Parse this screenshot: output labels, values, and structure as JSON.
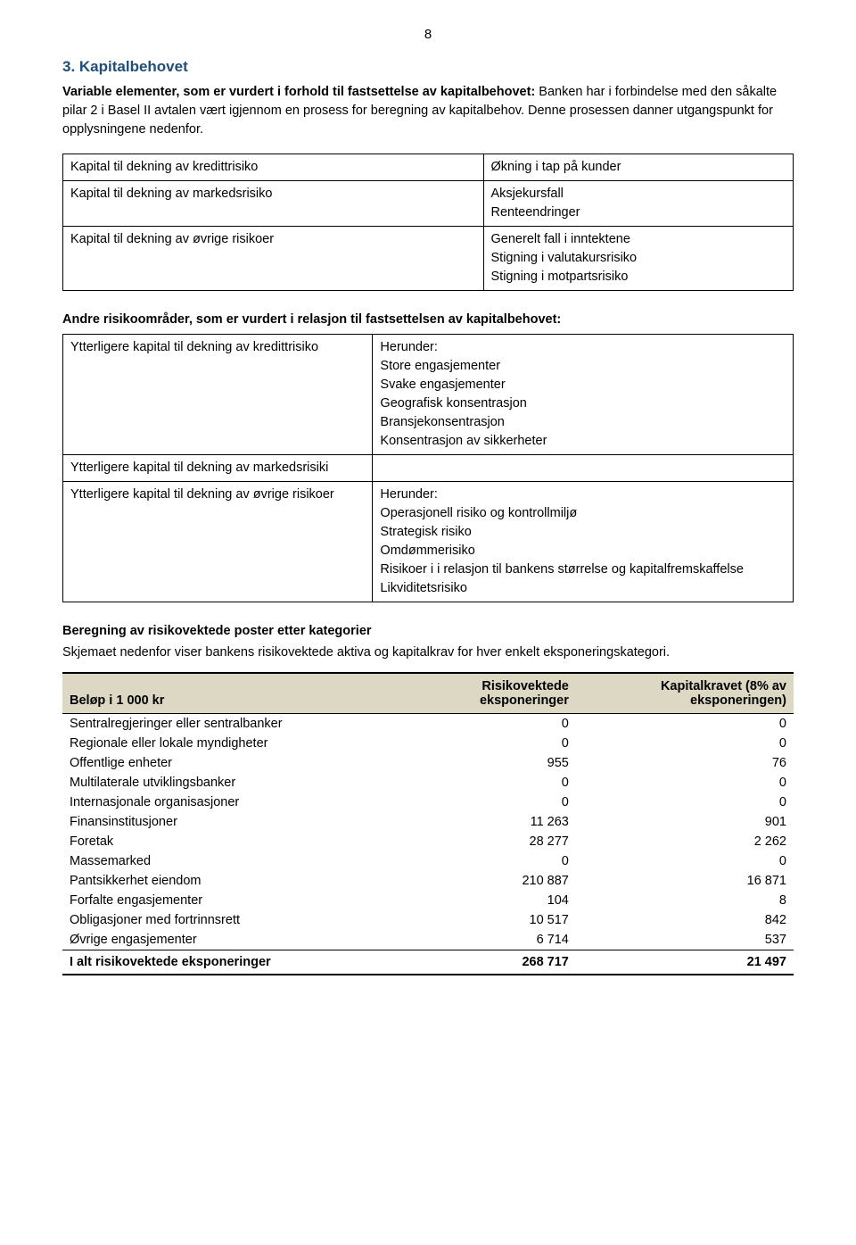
{
  "page_number": "8",
  "section": {
    "title": "3. Kapitalbehovet",
    "intro_lead": "Variable elementer, som er vurdert i forhold til fastsettelse av kapitalbehovet:",
    "intro_rest": " Banken har i forbindelse med den såkalte pilar 2 i Basel II avtalen vært igjennom en prosess for beregning av kapitalbehov. Denne prosessen danner utgangspunkt for opplysningene nedenfor."
  },
  "table1": {
    "rows": [
      {
        "left": "Kapital til dekning av kredittrisiko",
        "right": "Økning i tap på kunder"
      },
      {
        "left": "Kapital til dekning av markedsrisiko",
        "right": "Aksjekursfall\nRenteendringer"
      },
      {
        "left": "Kapital til dekning av øvrige risikoer",
        "right": "Generelt fall i inntektene\nStigning i valutakursrisiko\nStigning i motpartsrisiko"
      }
    ]
  },
  "mid_heading": "Andre risikoområder, som er vurdert i relasjon til fastsettelsen av kapitalbehovet:",
  "table2": {
    "rows": [
      {
        "left": "Ytterligere kapital til dekning av kredittrisiko",
        "right": "Herunder:\nStore engasjementer\nSvake engasjementer\nGeografisk konsentrasjon\nBransjekonsentrasjon\nKonsentrasjon av sikkerheter"
      },
      {
        "left": "Ytterligere kapital til dekning av markedsrisiki",
        "right": ""
      },
      {
        "left": "Ytterligere kapital til dekning av øvrige risikoer",
        "right": "Herunder:\nOperasjonell risiko og kontrollmiljø\nStrategisk risiko\nOmdømmerisiko\nRisikoer i i relasjon til bankens størrelse og kapitalfremskaffelse\nLikviditetsrisiko"
      }
    ]
  },
  "calc_heading": "Beregning av risikovektede poster etter kategorier",
  "calc_intro": "Skjemaet nedenfor viser bankens risikovektede aktiva og kapitalkrav for hver enkelt eksponeringskategori.",
  "data_table": {
    "header": {
      "col1": "Beløp i 1 000 kr",
      "col2": "Risikovektede\neksponeringer",
      "col3": "Kapitalkravet (8% av\neksponeringen)"
    },
    "rows": [
      {
        "label": "Sentralregjeringer eller sentralbanker",
        "v1": "0",
        "v2": "0"
      },
      {
        "label": "Regionale eller lokale myndigheter",
        "v1": "0",
        "v2": "0"
      },
      {
        "label": "Offentlige enheter",
        "v1": "955",
        "v2": "76"
      },
      {
        "label": "Multilaterale utviklingsbanker",
        "v1": "0",
        "v2": "0"
      },
      {
        "label": "Internasjonale organisasjoner",
        "v1": "0",
        "v2": "0"
      },
      {
        "label": "Finansinstitusjoner",
        "v1": "11 263",
        "v2": "901"
      },
      {
        "label": "Foretak",
        "v1": "28 277",
        "v2": "2 262"
      },
      {
        "label": "Massemarked",
        "v1": "0",
        "v2": "0"
      },
      {
        "label": "Pantsikkerhet eiendom",
        "v1": "210 887",
        "v2": "16 871"
      },
      {
        "label": "Forfalte engasjementer",
        "v1": "104",
        "v2": "8"
      },
      {
        "label": "Obligasjoner med fortrinnsrett",
        "v1": "10 517",
        "v2": "842"
      },
      {
        "label": "Øvrige engasjementer",
        "v1": "6 714",
        "v2": "537"
      }
    ],
    "total": {
      "label": "I alt risikovektede eksponeringer",
      "v1": "268 717",
      "v2": "21 497"
    }
  },
  "colors": {
    "heading": "#1f4e79",
    "table_header_bg": "#ddd8c3",
    "text": "#000000",
    "background": "#ffffff"
  }
}
